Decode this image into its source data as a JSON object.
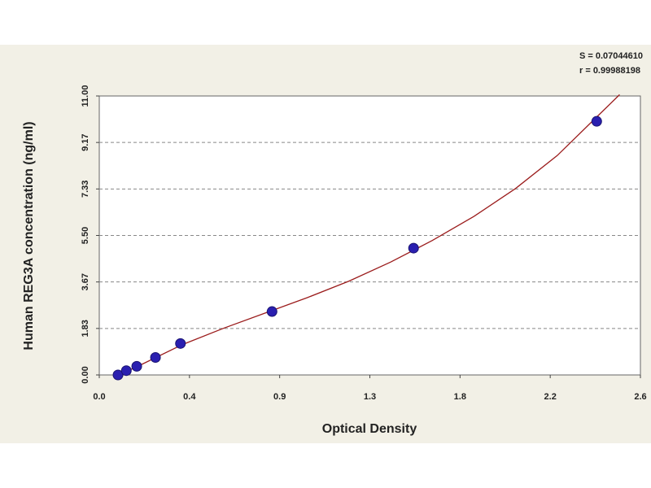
{
  "stats": {
    "s_line": "S = 0.07044610",
    "r_line": "r = 0.99988198"
  },
  "chart_data": {
    "type": "scatter",
    "title": "",
    "xlabel": "Optical Density",
    "ylabel": "Human REG3A concentration (ng/ml)",
    "xlim": [
      0,
      2.6
    ],
    "ylim": [
      0,
      11.0
    ],
    "x_ticks": [
      "0.0",
      "0.4",
      "0.9",
      "1.3",
      "1.8",
      "2.2",
      "2.6"
    ],
    "y_ticks": [
      "0.00",
      "1.83",
      "3.67",
      "5.50",
      "7.33",
      "9.17",
      "11.00"
    ],
    "grid": "horizontal dashed",
    "series": [
      {
        "points": [
          {
            "x": 0.09,
            "y": 0.0
          },
          {
            "x": 0.13,
            "y": 0.17
          },
          {
            "x": 0.18,
            "y": 0.34
          },
          {
            "x": 0.27,
            "y": 0.69
          },
          {
            "x": 0.39,
            "y": 1.24
          },
          {
            "x": 0.83,
            "y": 2.5
          },
          {
            "x": 1.51,
            "y": 5.0
          },
          {
            "x": 2.39,
            "y": 10.0
          }
        ],
        "color": "#2a1fb0"
      }
    ],
    "fit_curve": {
      "color": "#9b1c1c",
      "points": [
        {
          "x": 0.08,
          "y": -0.05
        },
        {
          "x": 0.2,
          "y": 0.4
        },
        {
          "x": 0.4,
          "y": 1.2
        },
        {
          "x": 0.6,
          "y": 1.85
        },
        {
          "x": 0.8,
          "y": 2.45
        },
        {
          "x": 1.0,
          "y": 3.05
        },
        {
          "x": 1.2,
          "y": 3.7
        },
        {
          "x": 1.4,
          "y": 4.45
        },
        {
          "x": 1.6,
          "y": 5.3
        },
        {
          "x": 1.8,
          "y": 6.25
        },
        {
          "x": 2.0,
          "y": 7.35
        },
        {
          "x": 2.2,
          "y": 8.65
        },
        {
          "x": 2.4,
          "y": 10.25
        },
        {
          "x": 2.5,
          "y": 11.05
        }
      ]
    }
  }
}
